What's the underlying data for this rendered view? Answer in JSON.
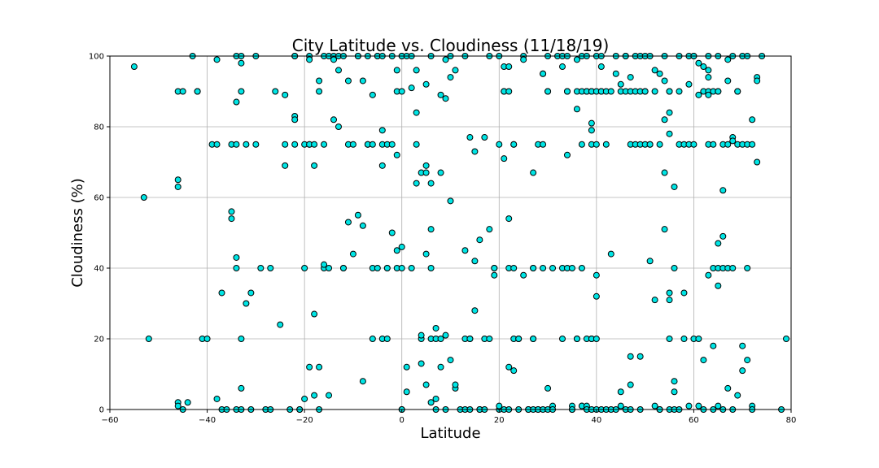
{
  "chart_data": {
    "type": "scatter",
    "title": "City Latitude vs. Cloudiness (11/18/19)",
    "xlabel": "Latitude",
    "ylabel": "Cloudiness (%)",
    "xlim": [
      -60,
      80
    ],
    "ylim": [
      0,
      100
    ],
    "x_ticks": [
      -60,
      -40,
      -20,
      0,
      20,
      40,
      60,
      80
    ],
    "y_ticks": [
      0,
      20,
      40,
      60,
      80,
      100
    ],
    "grid": true,
    "marker_fill": "#00e5e5",
    "marker_edge": "#000000",
    "points": [
      [
        -55,
        97
      ],
      [
        -53,
        60
      ],
      [
        -52,
        20
      ],
      [
        -46,
        63
      ],
      [
        -46,
        65
      ],
      [
        -46,
        90
      ],
      [
        -45,
        90
      ],
      [
        -46,
        2
      ],
      [
        -46,
        1
      ],
      [
        -45,
        0
      ],
      [
        -44,
        2
      ],
      [
        -43,
        100
      ],
      [
        -42,
        90
      ],
      [
        -42,
        90
      ],
      [
        -41,
        20
      ],
      [
        -40,
        20
      ],
      [
        -39,
        75
      ],
      [
        -38,
        99
      ],
      [
        -38,
        75
      ],
      [
        -38,
        3
      ],
      [
        -37,
        33
      ],
      [
        -37,
        0
      ],
      [
        -36,
        0
      ],
      [
        -35,
        56
      ],
      [
        -35,
        54
      ],
      [
        -35,
        75
      ],
      [
        -34,
        100
      ],
      [
        -34,
        75
      ],
      [
        -34,
        87
      ],
      [
        -34,
        43
      ],
      [
        -34,
        40
      ],
      [
        -34,
        0
      ],
      [
        -33,
        98
      ],
      [
        -33,
        90
      ],
      [
        -33,
        100
      ],
      [
        -33,
        20
      ],
      [
        -33,
        6
      ],
      [
        -33,
        0
      ],
      [
        -32,
        30
      ],
      [
        -32,
        75
      ],
      [
        -31,
        33
      ],
      [
        -31,
        0
      ],
      [
        -30,
        100
      ],
      [
        -30,
        75
      ],
      [
        -29,
        40
      ],
      [
        -28,
        0
      ],
      [
        -27,
        40
      ],
      [
        -27,
        0
      ],
      [
        -26,
        90
      ],
      [
        -25,
        24
      ],
      [
        -24,
        75
      ],
      [
        -24,
        89
      ],
      [
        -24,
        69
      ],
      [
        -23,
        0
      ],
      [
        -22,
        75
      ],
      [
        -22,
        100
      ],
      [
        -22,
        100
      ],
      [
        -22,
        83
      ],
      [
        -22,
        82
      ],
      [
        -21,
        0
      ],
      [
        -21,
        0
      ],
      [
        -20,
        75
      ],
      [
        -20,
        40
      ],
      [
        -20,
        3
      ],
      [
        -19,
        75
      ],
      [
        -19,
        75
      ],
      [
        -19,
        100
      ],
      [
        -19,
        99
      ],
      [
        -19,
        12
      ],
      [
        -18,
        27
      ],
      [
        -18,
        69
      ],
      [
        -18,
        75
      ],
      [
        -18,
        4
      ],
      [
        -17,
        90
      ],
      [
        -17,
        93
      ],
      [
        -17,
        12
      ],
      [
        -17,
        0
      ],
      [
        -16,
        75
      ],
      [
        -16,
        40
      ],
      [
        -16,
        41
      ],
      [
        -16,
        100
      ],
      [
        -15,
        100
      ],
      [
        -15,
        40
      ],
      [
        -15,
        4
      ],
      [
        -14,
        100
      ],
      [
        -14,
        99
      ],
      [
        -14,
        82
      ],
      [
        -13,
        80
      ],
      [
        -13,
        100
      ],
      [
        -13,
        96
      ],
      [
        -12,
        100
      ],
      [
        -12,
        40
      ],
      [
        -12,
        40
      ],
      [
        -11,
        93
      ],
      [
        -11,
        75
      ],
      [
        -11,
        53
      ],
      [
        -10,
        75
      ],
      [
        -10,
        44
      ],
      [
        -9,
        55
      ],
      [
        -9,
        100
      ],
      [
        -9,
        100
      ],
      [
        -8,
        93
      ],
      [
        -8,
        8
      ],
      [
        -8,
        52
      ],
      [
        -7,
        75
      ],
      [
        -7,
        75
      ],
      [
        -7,
        100
      ],
      [
        -6,
        89
      ],
      [
        -6,
        75
      ],
      [
        -6,
        40
      ],
      [
        -6,
        20
      ],
      [
        -5,
        100
      ],
      [
        -5,
        40
      ],
      [
        -5,
        100
      ],
      [
        -4,
        100
      ],
      [
        -4,
        69
      ],
      [
        -4,
        79
      ],
      [
        -4,
        75
      ],
      [
        -4,
        20
      ],
      [
        -3,
        20
      ],
      [
        -3,
        75
      ],
      [
        -3,
        40
      ],
      [
        -3,
        40
      ],
      [
        -2,
        50
      ],
      [
        -2,
        75
      ],
      [
        -2,
        100
      ],
      [
        -1,
        96
      ],
      [
        -1,
        90
      ],
      [
        -1,
        72
      ],
      [
        -1,
        45
      ],
      [
        -1,
        40
      ],
      [
        0,
        100
      ],
      [
        0,
        100
      ],
      [
        0,
        40
      ],
      [
        0,
        0
      ],
      [
        0,
        46
      ],
      [
        0,
        90
      ],
      [
        0,
        0
      ],
      [
        1,
        100
      ],
      [
        1,
        12
      ],
      [
        1,
        5
      ],
      [
        2,
        40
      ],
      [
        2,
        91
      ],
      [
        2,
        100
      ],
      [
        3,
        64
      ],
      [
        3,
        75
      ],
      [
        3,
        96
      ],
      [
        3,
        84
      ],
      [
        4,
        67
      ],
      [
        4,
        20
      ],
      [
        4,
        13
      ],
      [
        4,
        21
      ],
      [
        5,
        69
      ],
      [
        5,
        67
      ],
      [
        5,
        92
      ],
      [
        5,
        7
      ],
      [
        5,
        44
      ],
      [
        6,
        100
      ],
      [
        6,
        40
      ],
      [
        6,
        64
      ],
      [
        6,
        51
      ],
      [
        6,
        20
      ],
      [
        6,
        2
      ],
      [
        7,
        20
      ],
      [
        7,
        23
      ],
      [
        7,
        0
      ],
      [
        7,
        3
      ],
      [
        8,
        67
      ],
      [
        8,
        20
      ],
      [
        8,
        12
      ],
      [
        8,
        89
      ],
      [
        9,
        88
      ],
      [
        9,
        99
      ],
      [
        9,
        0
      ],
      [
        9,
        21
      ],
      [
        10,
        94
      ],
      [
        10,
        59
      ],
      [
        10,
        14
      ],
      [
        10,
        100
      ],
      [
        11,
        6
      ],
      [
        11,
        7
      ],
      [
        11,
        96
      ],
      [
        12,
        0
      ],
      [
        13,
        100
      ],
      [
        13,
        0
      ],
      [
        13,
        20
      ],
      [
        13,
        45
      ],
      [
        14,
        77
      ],
      [
        14,
        20
      ],
      [
        14,
        0
      ],
      [
        14,
        20
      ],
      [
        15,
        73
      ],
      [
        15,
        42
      ],
      [
        15,
        28
      ],
      [
        16,
        48
      ],
      [
        16,
        0
      ],
      [
        16,
        0
      ],
      [
        17,
        20
      ],
      [
        17,
        0
      ],
      [
        17,
        77
      ],
      [
        18,
        100
      ],
      [
        18,
        20
      ],
      [
        18,
        51
      ],
      [
        19,
        40
      ],
      [
        19,
        38
      ],
      [
        19,
        40
      ],
      [
        20,
        75
      ],
      [
        20,
        0
      ],
      [
        20,
        1
      ],
      [
        20,
        100
      ],
      [
        21,
        71
      ],
      [
        21,
        90
      ],
      [
        21,
        97
      ],
      [
        21,
        90
      ],
      [
        21,
        0
      ],
      [
        22,
        97
      ],
      [
        22,
        90
      ],
      [
        22,
        54
      ],
      [
        22,
        40
      ],
      [
        22,
        12
      ],
      [
        22,
        0
      ],
      [
        23,
        75
      ],
      [
        23,
        75
      ],
      [
        23,
        40
      ],
      [
        23,
        20
      ],
      [
        23,
        11
      ],
      [
        24,
        20
      ],
      [
        24,
        20
      ],
      [
        24,
        0
      ],
      [
        25,
        100
      ],
      [
        25,
        38
      ],
      [
        25,
        99
      ],
      [
        26,
        0
      ],
      [
        26,
        0
      ],
      [
        27,
        40
      ],
      [
        27,
        40
      ],
      [
        27,
        67
      ],
      [
        27,
        20
      ],
      [
        27,
        20
      ],
      [
        27,
        0
      ],
      [
        28,
        0
      ],
      [
        28,
        75
      ],
      [
        28,
        0
      ],
      [
        29,
        95
      ],
      [
        29,
        95
      ],
      [
        29,
        75
      ],
      [
        29,
        40
      ],
      [
        29,
        0
      ],
      [
        30,
        90
      ],
      [
        30,
        90
      ],
      [
        30,
        100
      ],
      [
        30,
        6
      ],
      [
        30,
        0
      ],
      [
        31,
        1
      ],
      [
        31,
        40
      ],
      [
        31,
        0
      ],
      [
        32,
        100
      ],
      [
        33,
        97
      ],
      [
        33,
        100
      ],
      [
        33,
        40
      ],
      [
        33,
        20
      ],
      [
        34,
        40
      ],
      [
        34,
        90
      ],
      [
        34,
        90
      ],
      [
        34,
        100
      ],
      [
        34,
        72
      ],
      [
        35,
        0
      ],
      [
        35,
        1
      ],
      [
        35,
        40
      ],
      [
        35,
        0
      ],
      [
        36,
        85
      ],
      [
        36,
        90
      ],
      [
        36,
        20
      ],
      [
        36,
        99
      ],
      [
        36,
        20
      ],
      [
        37,
        100
      ],
      [
        37,
        1
      ],
      [
        37,
        90
      ],
      [
        37,
        75
      ],
      [
        37,
        40
      ],
      [
        37,
        1
      ],
      [
        38,
        100
      ],
      [
        38,
        90
      ],
      [
        38,
        90
      ],
      [
        38,
        1
      ],
      [
        38,
        20
      ],
      [
        38,
        0
      ],
      [
        39,
        20
      ],
      [
        39,
        75
      ],
      [
        39,
        81
      ],
      [
        39,
        79
      ],
      [
        39,
        90
      ],
      [
        39,
        90
      ],
      [
        39,
        20
      ],
      [
        39,
        0
      ],
      [
        40,
        100
      ],
      [
        40,
        32
      ],
      [
        40,
        20
      ],
      [
        40,
        90
      ],
      [
        40,
        75
      ],
      [
        40,
        38
      ],
      [
        40,
        0
      ],
      [
        41,
        100
      ],
      [
        41,
        90
      ],
      [
        41,
        97
      ],
      [
        41,
        90
      ],
      [
        41,
        0
      ],
      [
        42,
        90
      ],
      [
        42,
        0
      ],
      [
        42,
        75
      ],
      [
        43,
        90
      ],
      [
        43,
        44
      ],
      [
        43,
        0
      ],
      [
        44,
        95
      ],
      [
        44,
        100
      ],
      [
        44,
        0
      ],
      [
        45,
        90
      ],
      [
        45,
        92
      ],
      [
        45,
        1
      ],
      [
        45,
        5
      ],
      [
        46,
        100
      ],
      [
        46,
        90
      ],
      [
        46,
        100
      ],
      [
        46,
        0
      ],
      [
        47,
        90
      ],
      [
        47,
        94
      ],
      [
        47,
        75
      ],
      [
        47,
        15
      ],
      [
        47,
        7
      ],
      [
        47,
        0
      ],
      [
        48,
        100
      ],
      [
        48,
        90
      ],
      [
        48,
        75
      ],
      [
        49,
        90
      ],
      [
        49,
        100
      ],
      [
        49,
        75
      ],
      [
        49,
        15
      ],
      [
        49,
        0
      ],
      [
        50,
        90
      ],
      [
        50,
        75
      ],
      [
        50,
        100
      ],
      [
        50,
        90
      ],
      [
        51,
        75
      ],
      [
        51,
        75
      ],
      [
        51,
        42
      ],
      [
        51,
        100
      ],
      [
        52,
        90
      ],
      [
        52,
        1
      ],
      [
        52,
        31
      ],
      [
        52,
        96
      ],
      [
        53,
        0
      ],
      [
        53,
        0
      ],
      [
        53,
        75
      ],
      [
        53,
        95
      ],
      [
        54,
        93
      ],
      [
        54,
        67
      ],
      [
        54,
        51
      ],
      [
        54,
        82
      ],
      [
        54,
        100
      ],
      [
        55,
        90
      ],
      [
        55,
        84
      ],
      [
        55,
        33
      ],
      [
        55,
        20
      ],
      [
        55,
        31
      ],
      [
        55,
        78
      ],
      [
        55,
        90
      ],
      [
        55,
        0
      ],
      [
        56,
        40
      ],
      [
        56,
        63
      ],
      [
        56,
        5
      ],
      [
        56,
        8
      ],
      [
        56,
        0
      ],
      [
        57,
        75
      ],
      [
        57,
        100
      ],
      [
        57,
        90
      ],
      [
        57,
        0
      ],
      [
        58,
        20
      ],
      [
        58,
        33
      ],
      [
        58,
        75
      ],
      [
        59,
        100
      ],
      [
        59,
        75
      ],
      [
        59,
        92
      ],
      [
        59,
        1
      ],
      [
        60,
        20
      ],
      [
        60,
        75
      ],
      [
        60,
        100
      ],
      [
        60,
        100
      ],
      [
        61,
        98
      ],
      [
        61,
        89
      ],
      [
        61,
        20
      ],
      [
        61,
        1
      ],
      [
        62,
        90
      ],
      [
        62,
        97
      ],
      [
        62,
        14
      ],
      [
        62,
        0
      ],
      [
        63,
        100
      ],
      [
        63,
        94
      ],
      [
        63,
        96
      ],
      [
        63,
        90
      ],
      [
        63,
        89
      ],
      [
        63,
        75
      ],
      [
        63,
        38
      ],
      [
        64,
        75
      ],
      [
        64,
        18
      ],
      [
        64,
        90
      ],
      [
        64,
        40
      ],
      [
        64,
        0
      ],
      [
        65,
        100
      ],
      [
        65,
        90
      ],
      [
        65,
        90
      ],
      [
        65,
        1
      ],
      [
        65,
        47
      ],
      [
        65,
        35
      ],
      [
        65,
        40
      ],
      [
        66,
        62
      ],
      [
        66,
        40
      ],
      [
        66,
        75
      ],
      [
        66,
        49
      ],
      [
        66,
        0
      ],
      [
        67,
        75
      ],
      [
        67,
        93
      ],
      [
        67,
        99
      ],
      [
        67,
        40
      ],
      [
        67,
        6
      ],
      [
        68,
        77
      ],
      [
        68,
        76
      ],
      [
        68,
        100
      ],
      [
        68,
        40
      ],
      [
        68,
        0
      ],
      [
        69,
        75
      ],
      [
        69,
        90
      ],
      [
        69,
        90
      ],
      [
        69,
        4
      ],
      [
        70,
        18
      ],
      [
        70,
        75
      ],
      [
        70,
        100
      ],
      [
        70,
        11
      ],
      [
        71,
        100
      ],
      [
        71,
        75
      ],
      [
        71,
        40
      ],
      [
        71,
        14
      ],
      [
        72,
        82
      ],
      [
        72,
        75
      ],
      [
        72,
        1
      ],
      [
        72,
        0
      ],
      [
        73,
        94
      ],
      [
        73,
        70
      ],
      [
        73,
        93
      ],
      [
        74,
        100
      ],
      [
        78,
        0
      ],
      [
        79,
        20
      ]
    ]
  }
}
